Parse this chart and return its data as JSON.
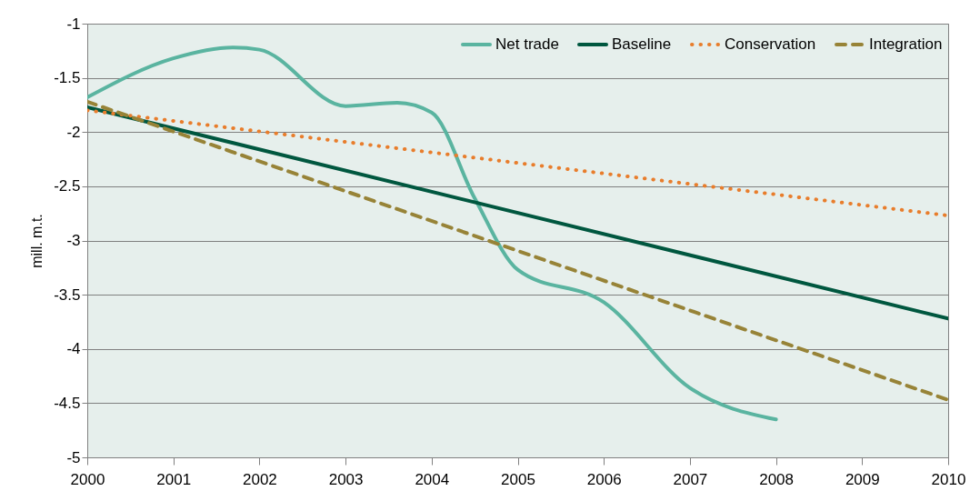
{
  "chart_data": {
    "type": "line",
    "ylabel": "mill. m.t.",
    "xlim": [
      2000,
      2010
    ],
    "xticks": [
      2000,
      2001,
      2002,
      2003,
      2004,
      2005,
      2006,
      2007,
      2008,
      2009,
      2010
    ],
    "ylim": [
      -5,
      -1
    ],
    "yticks": [
      -5,
      -4.5,
      -4,
      -3.5,
      -3,
      -2.5,
      -2,
      -1.5,
      -1
    ],
    "grid": "y",
    "legend": "top right",
    "marker": "none",
    "series": [
      {
        "name": "Net trade",
        "color": "#5ab4a0",
        "line_style": "solid",
        "x": [
          2000,
          2001,
          2001.7,
          2002,
          2003,
          2003.6,
          2004,
          2004.5,
          2005,
          2006,
          2007,
          2008
        ],
        "values": [
          -1.68,
          -1.32,
          -1.22,
          -1.24,
          -1.76,
          -1.73,
          -1.82,
          -2.61,
          -3.27,
          -3.57,
          -4.36,
          -4.65
        ]
      },
      {
        "name": "Baseline",
        "color": "#00573f",
        "line_style": "solid",
        "x": [
          2000,
          2010
        ],
        "values": [
          -1.77,
          -3.72
        ]
      },
      {
        "name": "Conservation",
        "color": "#e87d2c",
        "line_style": "dotted",
        "x": [
          2000,
          2010
        ],
        "values": [
          -1.8,
          -2.77
        ]
      },
      {
        "name": "Integration",
        "color": "#978337",
        "line_style": "dashed",
        "x": [
          2000,
          2010
        ],
        "values": [
          -1.72,
          -4.47
        ]
      }
    ]
  }
}
